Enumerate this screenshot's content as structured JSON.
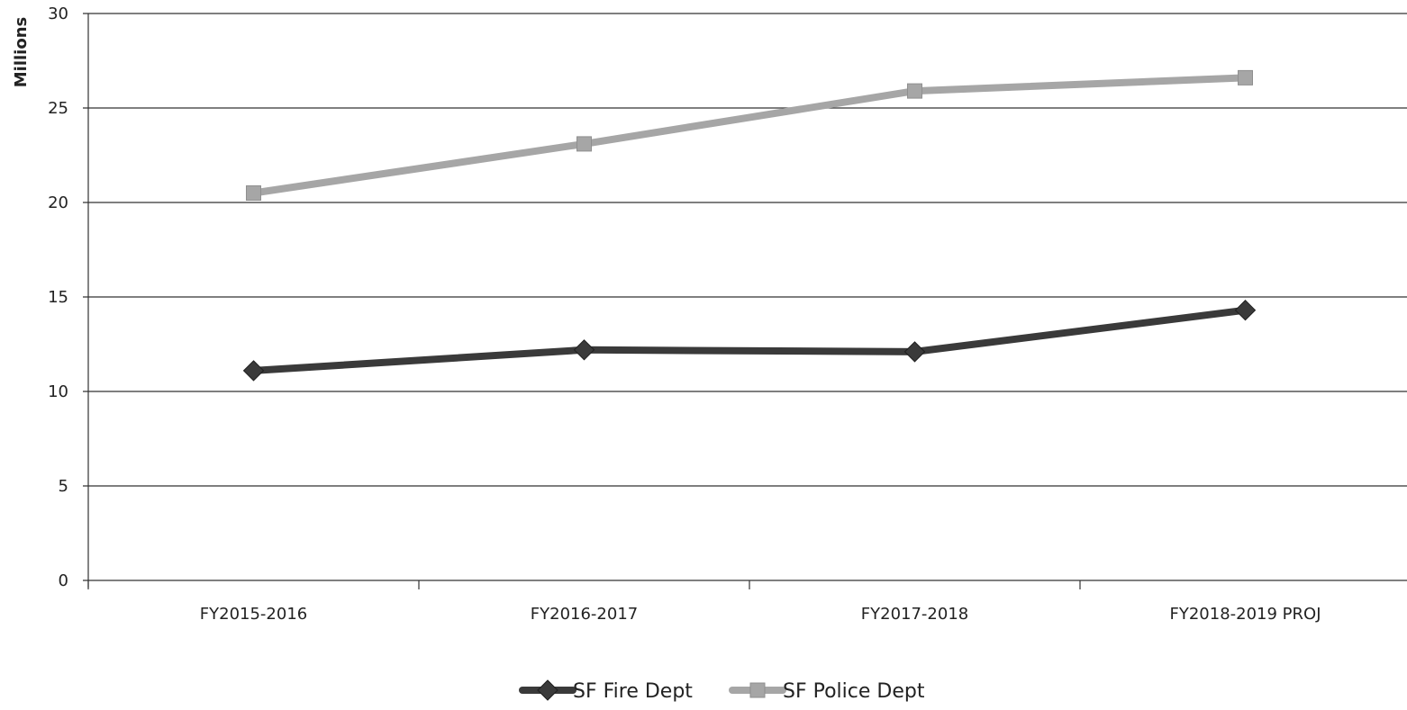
{
  "chart_data": {
    "type": "line",
    "title": "",
    "xlabel": "",
    "ylabel": "Millions",
    "ylim": [
      0,
      30
    ],
    "yticks": [
      0,
      5,
      10,
      15,
      20,
      25,
      30
    ],
    "ytick_labels": [
      "0",
      "5",
      "10",
      "15",
      "20",
      "25",
      "30"
    ],
    "grid": "horizontal",
    "legend_position": "bottom",
    "categories": [
      "FY2015-2016",
      "FY2016-2017",
      "FY2017-2018",
      "FY2018-2019 PROJ"
    ],
    "series": [
      {
        "name": "SF Fire Dept",
        "values": [
          11.1,
          12.2,
          12.1,
          14.3
        ],
        "color": "#3a3a3a",
        "marker": "diamond"
      },
      {
        "name": "SF Police Dept",
        "values": [
          20.5,
          23.1,
          25.9,
          26.6
        ],
        "color": "#a6a6a6",
        "marker": "square"
      }
    ]
  }
}
